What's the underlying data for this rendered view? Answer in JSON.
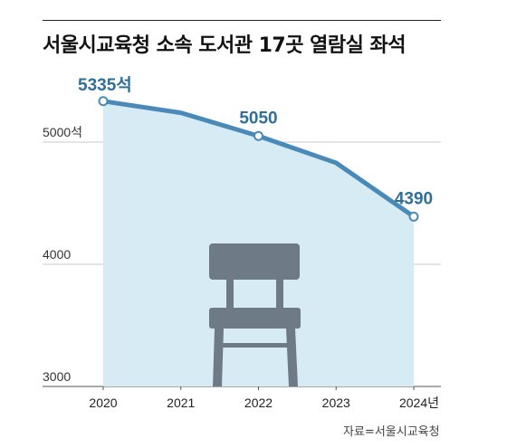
{
  "title": "서울시교육청 소속 도서관 17곳 열람실 좌석",
  "source": "자료=서울시교육청",
  "colors": {
    "line": "#4a8ab8",
    "area": "#d7ebf4",
    "label": "#2f6f98",
    "chair": "#6e7a85",
    "grid": "#c8c8c8"
  },
  "chart_data": {
    "type": "area",
    "title": "서울시교육청 소속 도서관 17곳 열람실 좌석",
    "categories": [
      "2020",
      "2021",
      "2022",
      "2023",
      "2024년"
    ],
    "series": [
      {
        "values": [
          5335,
          5240,
          5050,
          4830,
          4390
        ]
      }
    ],
    "data_labels": [
      {
        "index": 0,
        "text": "5335석"
      },
      {
        "index": 2,
        "text": "5050"
      },
      {
        "index": 4,
        "text": "4390"
      }
    ],
    "y_ticks": [
      {
        "value": 3000,
        "label": "3000"
      },
      {
        "value": 4000,
        "label": "4000"
      },
      {
        "value": 5000,
        "label": "5000석"
      }
    ],
    "ylim": [
      3000,
      6000
    ],
    "grid": true,
    "decoration": "chair-icon"
  }
}
